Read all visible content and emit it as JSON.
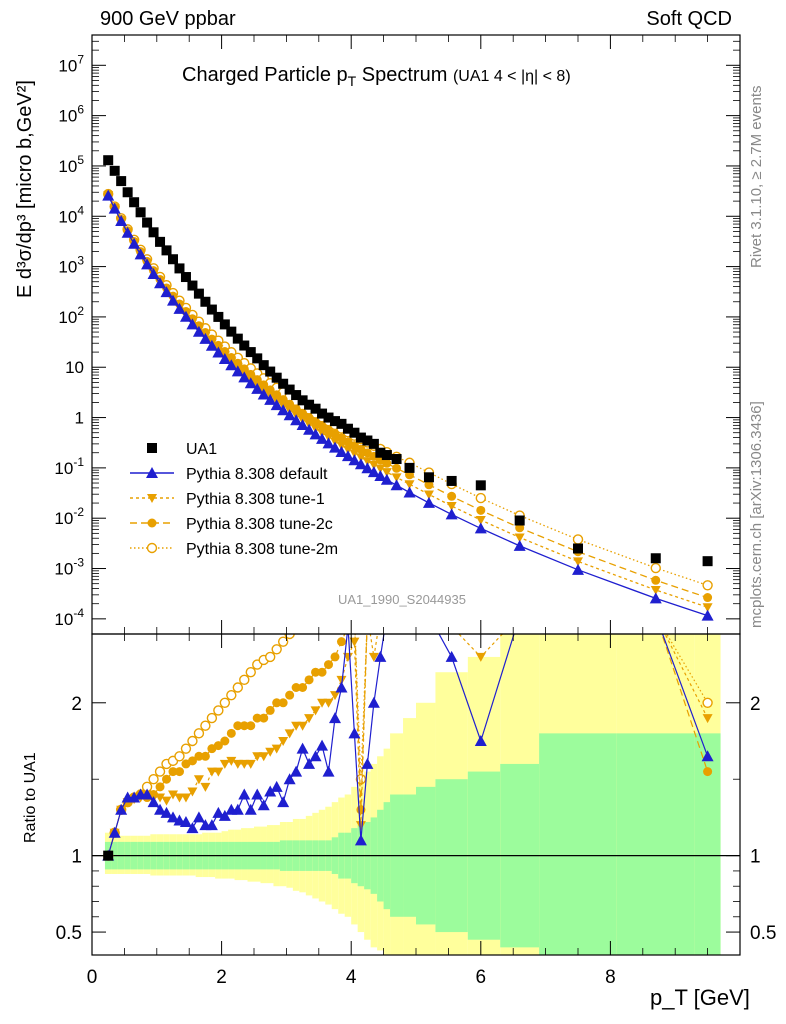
{
  "header": {
    "left": "900 GeV ppbar",
    "right": "Soft QCD"
  },
  "side": {
    "top": "Rivet 3.1.10, ≥ 2.7M events",
    "bottom": "mcplots.cern.ch [arXiv:1306.3436]"
  },
  "title": {
    "main": "Charged Particle p",
    "main_sub": "T",
    "main_tail": " Spectrum",
    "cut": "(UA1   4 < |η| < 8)"
  },
  "watermark": "UA1_1990_S2044935",
  "ylabel_main": "E d³σ/dp³ [micro b,GeV²]",
  "ylabel_ratio": "Ratio to UA1",
  "xlabel": "p_T [GeV]",
  "colors": {
    "data": "#000000",
    "default": "#1f1fcf",
    "orange": "#e8a000",
    "band_inner": "#9cfc9c",
    "band_outer": "#ffff9c"
  },
  "chart_data": {
    "type": "scatter",
    "title": "Charged Particle pT Spectrum (UA1 4 < |eta| < 8)",
    "xlabel": "pT [GeV]",
    "ylabel": "E d3sigma/dp3 [micro b,GeV2]",
    "xlim": [
      0,
      10
    ],
    "ylim": [
      5e-05,
      40000000
    ],
    "yscale": "log",
    "x_ticks": [
      "0",
      "2",
      "4",
      "6",
      "8"
    ],
    "y_ticks": [
      "10^-4",
      "10^-3",
      "10^-2",
      "10^-1",
      "1",
      "10",
      "10^2",
      "10^3",
      "10^4",
      "10^5",
      "10^6",
      "10^7"
    ],
    "ratio_ylim": [
      0.35,
      2.45
    ],
    "ratio_ticks": [
      "0.5",
      "1",
      "2"
    ],
    "legend": [
      "UA1",
      "Pythia 8.308 default",
      "Pythia 8.308 tune-1",
      "Pythia 8.308 tune-2c",
      "Pythia 8.308 tune-2m"
    ],
    "x": [
      0.25,
      0.35,
      0.45,
      0.55,
      0.65,
      0.75,
      0.85,
      0.95,
      1.05,
      1.15,
      1.25,
      1.35,
      1.45,
      1.55,
      1.65,
      1.75,
      1.85,
      1.95,
      2.05,
      2.15,
      2.25,
      2.35,
      2.45,
      2.55,
      2.65,
      2.75,
      2.85,
      2.95,
      3.05,
      3.15,
      3.25,
      3.35,
      3.45,
      3.55,
      3.65,
      3.75,
      3.85,
      3.95,
      4.05,
      4.15,
      4.25,
      4.35,
      4.45,
      4.55,
      4.7,
      4.9,
      5.2,
      5.55,
      6.0,
      6.6,
      7.5,
      8.7,
      9.5
    ],
    "series": [
      {
        "name": "UA1",
        "marker": "square",
        "values": [
          130000,
          80000,
          50000,
          30000,
          19000,
          12000,
          7500,
          4800,
          3100,
          2100,
          1400,
          920,
          620,
          420,
          290,
          200,
          140,
          100,
          71,
          51,
          37,
          27,
          20,
          15,
          11,
          8.2,
          6.2,
          4.7,
          3.6,
          2.8,
          2.2,
          1.8,
          1.5,
          1.2,
          1.0,
          0.85,
          0.75,
          0.6,
          0.5,
          0.4,
          0.35,
          0.3,
          0.2,
          0.18,
          0.15,
          0.1,
          0.065,
          0.055,
          0.045,
          0.009,
          0.0025,
          0.0016,
          0.0014
        ],
        "ratio": [
          1,
          1,
          1,
          1,
          1,
          1,
          1,
          1,
          1,
          1,
          1,
          1,
          1,
          1,
          1,
          1,
          1,
          1,
          1,
          1,
          1,
          1,
          1,
          1,
          1,
          1,
          1,
          1,
          1,
          1,
          1,
          1,
          1,
          1,
          1,
          1,
          1,
          1,
          1,
          1,
          1,
          1,
          1,
          1,
          1,
          1,
          1,
          1,
          1,
          1,
          1,
          1,
          1
        ]
      },
      {
        "name": "Pythia 8.308 default",
        "marker": "triangle-up",
        "ratio": [
          1,
          1.15,
          1.3,
          1.38,
          1.38,
          1.4,
          1.4,
          1.35,
          1.3,
          1.28,
          1.25,
          1.23,
          1.22,
          1.18,
          1.25,
          1.2,
          1.2,
          1.28,
          1.26,
          1.3,
          1.3,
          1.4,
          1.3,
          1.4,
          1.33,
          1.42,
          1.45,
          1.35,
          1.5,
          1.55,
          1.7,
          1.6,
          1.65,
          1.72,
          1.55,
          1.9,
          2.1,
          2.5,
          1.8,
          1.1,
          1.6,
          2,
          2.3,
          2.6,
          2.6,
          3,
          3.5,
          2.3,
          1.75,
          5,
          5,
          4,
          1.65
        ]
      },
      {
        "name": "Pythia 8.308 tune-1",
        "marker": "triangle-down",
        "ratio": [
          1,
          1.15,
          1.3,
          1.35,
          1.37,
          1.38,
          1.4,
          1.38,
          1.38,
          1.36,
          1.4,
          1.38,
          1.38,
          1.42,
          1.5,
          1.45,
          1.55,
          1.55,
          1.6,
          1.62,
          1.6,
          1.6,
          1.6,
          1.65,
          1.65,
          1.68,
          1.7,
          1.75,
          1.8,
          1.85,
          1.85,
          1.9,
          1.95,
          2,
          2,
          2.05,
          2.15,
          2.3,
          2.4,
          1.2,
          2.6,
          2.3,
          2.8,
          3,
          3,
          3.4,
          3.6,
          2.5,
          2.3,
          5,
          5,
          4,
          1.9
        ]
      },
      {
        "name": "Pythia 8.308 tune-2c",
        "marker": "circle",
        "ratio": [
          1,
          1.15,
          1.3,
          1.35,
          1.38,
          1.4,
          1.38,
          1.4,
          1.45,
          1.5,
          1.55,
          1.55,
          1.6,
          1.62,
          1.65,
          1.65,
          1.7,
          1.72,
          1.75,
          1.8,
          1.85,
          1.85,
          1.85,
          1.9,
          1.9,
          1.95,
          2,
          2,
          2.05,
          2.1,
          2.1,
          2.15,
          2.2,
          2.2,
          2.25,
          2.3,
          2.4,
          2.5,
          2.6,
          1.3,
          2.7,
          2.8,
          2.9,
          3,
          3.1,
          3.3,
          3.6,
          2.5,
          2.5,
          5,
          5,
          4,
          1.55
        ]
      },
      {
        "name": "Pythia 8.308 tune-2m",
        "marker": "circle-open",
        "ratio": [
          1,
          1.15,
          1.3,
          1.35,
          1.38,
          1.4,
          1.45,
          1.5,
          1.55,
          1.6,
          1.62,
          1.65,
          1.7,
          1.75,
          1.8,
          1.85,
          1.9,
          1.95,
          2,
          2.05,
          2.1,
          2.15,
          2.2,
          2.25,
          2.28,
          2.3,
          2.35,
          2.4,
          2.45,
          2.5,
          2.55,
          2.6,
          2.65,
          2.7,
          2.75,
          2.8,
          2.9,
          3,
          3.1,
          1.5,
          3.2,
          3.3,
          3.4,
          3.5,
          3.6,
          3.8,
          4,
          2.8,
          2.8,
          5,
          5,
          4.5,
          2
        ]
      }
    ],
    "band_edges": [
      0.2,
      0.3,
      0.4,
      0.5,
      0.6,
      0.7,
      0.8,
      0.9,
      1,
      1.1,
      1.2,
      1.3,
      1.4,
      1.5,
      1.6,
      1.7,
      1.8,
      1.9,
      2,
      2.1,
      2.2,
      2.3,
      2.4,
      2.5,
      2.6,
      2.7,
      2.8,
      2.9,
      3,
      3.1,
      3.2,
      3.3,
      3.4,
      3.5,
      3.6,
      3.7,
      3.8,
      3.9,
      4,
      4.1,
      4.2,
      4.3,
      4.4,
      4.5,
      4.6,
      4.8,
      5,
      5.3,
      5.8,
      6.3,
      6.9,
      8.1,
      9.3,
      9.7
    ],
    "band_inner": [
      0.09,
      0.09,
      0.09,
      0.09,
      0.09,
      0.09,
      0.09,
      0.09,
      0.09,
      0.09,
      0.09,
      0.09,
      0.09,
      0.09,
      0.09,
      0.09,
      0.09,
      0.09,
      0.09,
      0.09,
      0.09,
      0.09,
      0.09,
      0.09,
      0.09,
      0.09,
      0.09,
      0.1,
      0.1,
      0.1,
      0.1,
      0.1,
      0.1,
      0.1,
      0.1,
      0.12,
      0.15,
      0.15,
      0.18,
      0.2,
      0.22,
      0.25,
      0.3,
      0.35,
      0.4,
      0.4,
      0.45,
      0.5,
      0.55,
      0.6,
      0.8,
      0.8,
      0.8
    ],
    "band_outer_up": [
      0.15,
      0.13,
      0.13,
      0.13,
      0.13,
      0.13,
      0.13,
      0.14,
      0.14,
      0.14,
      0.14,
      0.14,
      0.14,
      0.14,
      0.14,
      0.15,
      0.15,
      0.15,
      0.16,
      0.17,
      0.17,
      0.18,
      0.18,
      0.19,
      0.19,
      0.2,
      0.2,
      0.22,
      0.22,
      0.24,
      0.24,
      0.26,
      0.28,
      0.3,
      0.32,
      0.35,
      0.38,
      0.4,
      0.45,
      0.5,
      0.55,
      0.6,
      0.65,
      0.7,
      0.8,
      0.9,
      1,
      1.2,
      1.3,
      1.5,
      1.5,
      1.5,
      1.5
    ],
    "band_outer_down": [
      0.12,
      0.12,
      0.12,
      0.12,
      0.12,
      0.12,
      0.12,
      0.13,
      0.13,
      0.13,
      0.13,
      0.13,
      0.13,
      0.13,
      0.14,
      0.14,
      0.14,
      0.15,
      0.15,
      0.15,
      0.16,
      0.16,
      0.17,
      0.17,
      0.18,
      0.18,
      0.2,
      0.2,
      0.21,
      0.23,
      0.24,
      0.26,
      0.28,
      0.3,
      0.32,
      0.35,
      0.38,
      0.4,
      0.45,
      0.5,
      0.55,
      0.6,
      0.62,
      0.65,
      0.65,
      0.65,
      0.65,
      0.65,
      0.65,
      0.65,
      0.65,
      0.65,
      0.65
    ]
  }
}
